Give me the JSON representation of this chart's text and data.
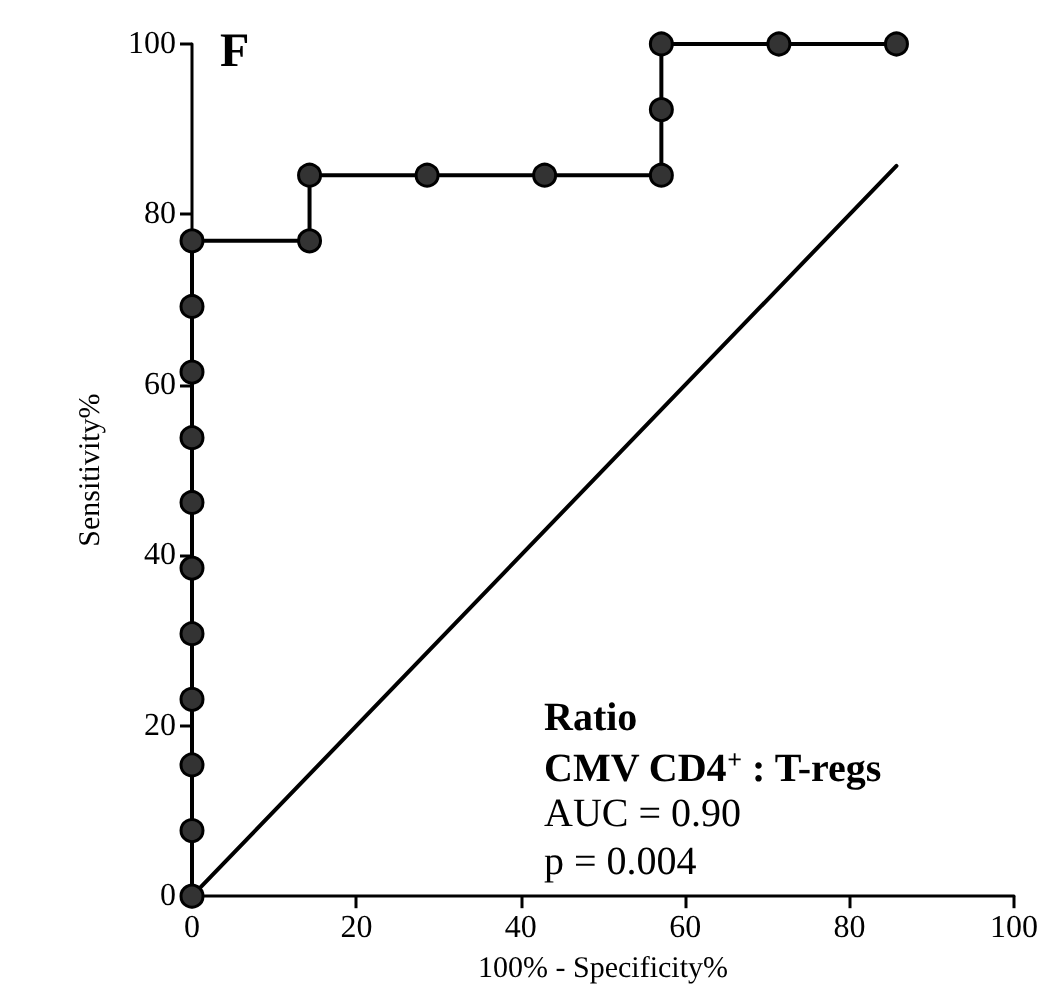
{
  "chart_data": {
    "type": "line",
    "xlabel": "100% - Specificity%",
    "ylabel": "Sensitivity%",
    "xlim": [
      0,
      100
    ],
    "ylim": [
      0,
      100
    ],
    "xticks": [
      0,
      20,
      40,
      60,
      80,
      100
    ],
    "yticks": [
      0,
      20,
      40,
      60,
      80,
      100
    ],
    "grid": false,
    "marker": "circle",
    "series": [
      {
        "color": "#333333",
        "x": [
          0,
          0,
          0,
          0,
          0,
          0,
          0,
          0,
          0,
          0,
          0,
          14.3,
          14.3,
          28.6,
          42.9,
          57.1,
          57.1,
          57.1,
          71.4,
          85.7
        ],
        "values": [
          0,
          7.7,
          15.4,
          23.1,
          30.8,
          38.5,
          46.2,
          53.8,
          61.5,
          69.2,
          76.9,
          76.9,
          84.6,
          84.6,
          84.6,
          84.6,
          92.3,
          100,
          100,
          100
        ]
      },
      {
        "color": "#000000",
        "marker": "none",
        "x": [
          0,
          85.7
        ],
        "values": [
          0,
          85.7
        ]
      }
    ],
    "annotations": [
      "F",
      "Ratio",
      "CMV CD4$^{+}$ : T-regs",
      "AUC = 0.90",
      "p = 0.004"
    ]
  }
}
